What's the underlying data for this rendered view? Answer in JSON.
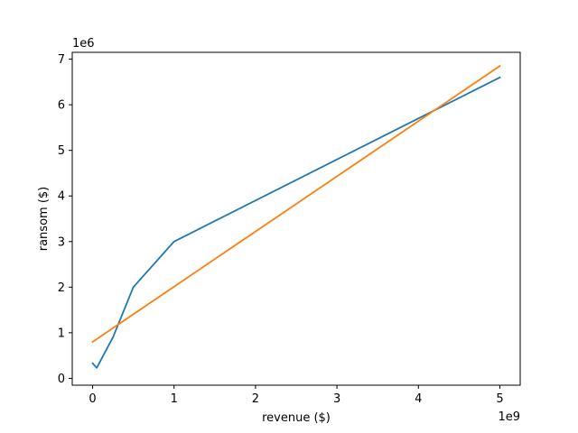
{
  "chart_data": {
    "type": "line",
    "title": "",
    "xlabel": "revenue ($)",
    "ylabel": "ransom ($)",
    "x_offset_label": "1e9",
    "y_offset_label": "1e6",
    "xlim": [
      -250000000,
      5250000000
    ],
    "ylim": [
      -150000,
      7150000
    ],
    "x_ticks": [
      0,
      1000000000,
      2000000000,
      3000000000,
      4000000000,
      5000000000
    ],
    "x_tick_labels": [
      "0",
      "1",
      "2",
      "3",
      "4",
      "5"
    ],
    "y_ticks": [
      0,
      1000000,
      2000000,
      3000000,
      4000000,
      5000000,
      6000000,
      7000000
    ],
    "y_tick_labels": [
      "0",
      "1",
      "2",
      "3",
      "4",
      "5",
      "6",
      "7"
    ],
    "grid": false,
    "legend": "none",
    "series": [
      {
        "color": "#1f77b4",
        "x": [
          0,
          50000000,
          250000000,
          500000000,
          1000000000,
          5000000000
        ],
        "y": [
          330000,
          230000,
          900000,
          2000000,
          3000000,
          6600000
        ]
      },
      {
        "color": "#ff7f0e",
        "x": [
          0,
          5000000000
        ],
        "y": [
          800000,
          6850000
        ]
      }
    ]
  }
}
